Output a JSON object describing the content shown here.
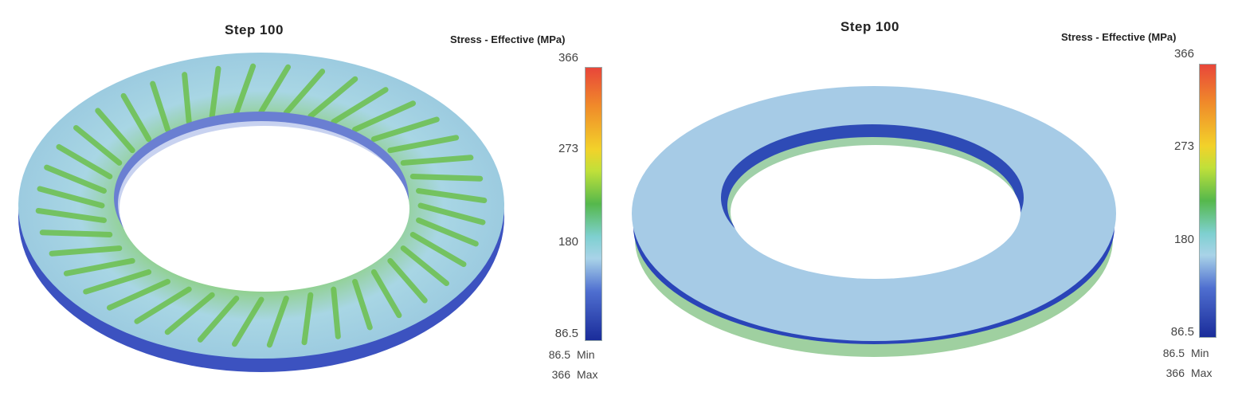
{
  "panels": [
    {
      "step_label": "Step  100",
      "legend_title": "Stress - Effective (MPa)",
      "ticks": [
        "366",
        "273",
        "180",
        "86.5"
      ],
      "min_value": "86.5",
      "min_label": "Min",
      "max_value": "366",
      "max_label": "Max"
    },
    {
      "step_label": "Step  100",
      "legend_title": "Stress - Effective (MPa)",
      "ticks": [
        "366",
        "273",
        "180",
        "86.5"
      ],
      "min_value": "86.5",
      "min_label": "Min",
      "max_value": "366",
      "max_label": "Max"
    }
  ],
  "colors": {
    "high": "#e8463a",
    "mid_high": "#f2d22a",
    "mid": "#55b84c",
    "low_mid": "#a9d3e8",
    "low": "#1a2c9a"
  }
}
